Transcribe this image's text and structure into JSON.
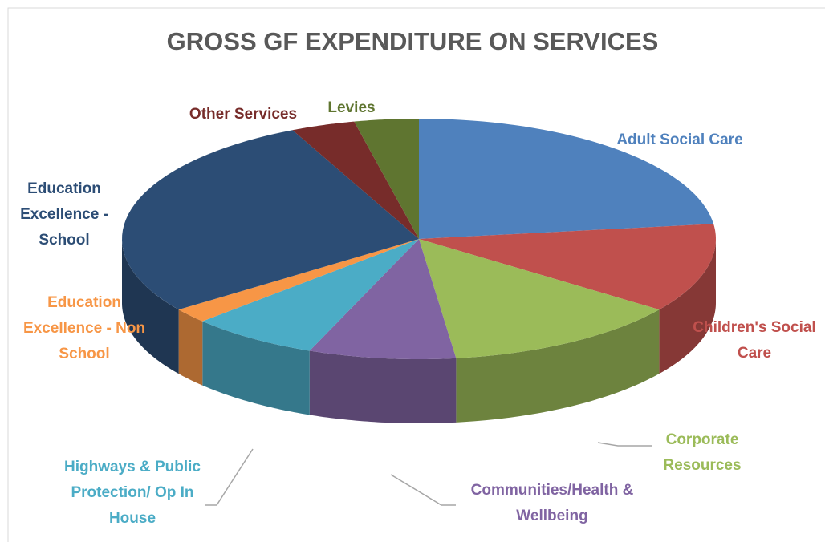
{
  "chart_data": {
    "type": "pie",
    "title": "GROSS GF EXPENDITURE ON SERVICES",
    "categories": [
      "Adult Social Care",
      "Children's Social Care",
      "Corporate Resources",
      "Communities/Health & Wellbeing",
      "Highways & Public Protection/ Op In House",
      "Education Excellence - Non School",
      "Education Excellence - School",
      "Other Services",
      "Levies"
    ],
    "values": [
      23,
      12,
      13,
      8,
      7,
      2,
      28,
      3.5,
      3.5
    ],
    "colors": [
      "#4f81bd",
      "#c0504d",
      "#9bbb59",
      "#8064a2",
      "#4bacc6",
      "#f79646",
      "#2c4d75",
      "#772c2a",
      "#5f7530"
    ]
  }
}
